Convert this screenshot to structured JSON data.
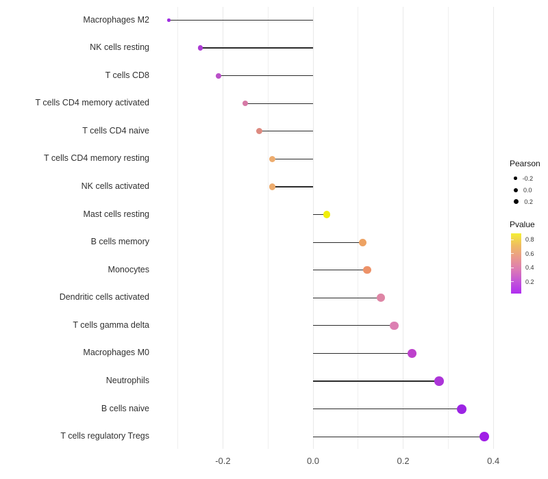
{
  "chart_data": {
    "type": "lollipop",
    "orientation": "horizontal",
    "title": "",
    "xlabel": "",
    "ylabel": "",
    "xlim": [
      -0.355,
      0.415
    ],
    "grid": "minor-vertical-only",
    "x_ticks": [
      {
        "label": "-0.2",
        "value": -0.2
      },
      {
        "label": "0.0",
        "value": 0.0
      },
      {
        "label": "0.2",
        "value": 0.2
      },
      {
        "label": "0.4",
        "value": 0.4
      }
    ],
    "gridline_values": [
      -0.3,
      -0.2,
      -0.1,
      0.0,
      0.1,
      0.2,
      0.3,
      0.4
    ],
    "baseline_value": 0.0,
    "points": [
      {
        "label": "Macrophages M2",
        "pearson": -0.32,
        "pvalue_est": 0.08,
        "color": "#9e2ce0",
        "radius_px": 2.2
      },
      {
        "label": "NK cells resting",
        "pearson": -0.25,
        "pvalue_est": 0.15,
        "color": "#ac3bd4",
        "radius_px": 3.7
      },
      {
        "label": "T cells CD8",
        "pearson": -0.21,
        "pvalue_est": 0.25,
        "color": "#ba50c8",
        "radius_px": 3.9
      },
      {
        "label": "T cells CD4 memory activated",
        "pearson": -0.15,
        "pvalue_est": 0.42,
        "color": "#d679a6",
        "radius_px": 4.2
      },
      {
        "label": "T cells CD4 naive",
        "pearson": -0.12,
        "pvalue_est": 0.5,
        "color": "#dd8a80",
        "radius_px": 4.5
      },
      {
        "label": "T cells CD4 memory resting",
        "pearson": -0.09,
        "pvalue_est": 0.62,
        "color": "#edac6e",
        "radius_px": 4.7
      },
      {
        "label": "NK cells activated",
        "pearson": -0.09,
        "pvalue_est": 0.62,
        "color": "#edac6e",
        "radius_px": 4.7
      },
      {
        "label": "Mast cells resting",
        "pearson": 0.03,
        "pvalue_est": 0.88,
        "color": "#f0ee09",
        "radius_px": 5.2
      },
      {
        "label": "B cells memory",
        "pearson": 0.11,
        "pvalue_est": 0.58,
        "color": "#eda263",
        "radius_px": 5.5
      },
      {
        "label": "Monocytes",
        "pearson": 0.12,
        "pvalue_est": 0.55,
        "color": "#ed9268",
        "radius_px": 5.7
      },
      {
        "label": "Dendritic cells activated",
        "pearson": 0.15,
        "pvalue_est": 0.44,
        "color": "#de85a5",
        "radius_px": 5.9
      },
      {
        "label": "T cells gamma delta",
        "pearson": 0.18,
        "pvalue_est": 0.38,
        "color": "#dc7fb2",
        "radius_px": 6.2
      },
      {
        "label": "Macrophages M0",
        "pearson": 0.22,
        "pvalue_est": 0.22,
        "color": "#bd41cc",
        "radius_px": 6.4
      },
      {
        "label": "Neutrophils",
        "pearson": 0.28,
        "pvalue_est": 0.14,
        "color": "#ac35d8",
        "radius_px": 6.8
      },
      {
        "label": "B cells naive",
        "pearson": 0.33,
        "pvalue_est": 0.07,
        "color": "#9c24e4",
        "radius_px": 7.0
      },
      {
        "label": "T cells regulatory Tregs",
        "pearson": 0.38,
        "pvalue_est": 0.05,
        "color": "#a01ee6",
        "radius_px": 7.3
      }
    ],
    "legend": {
      "size": {
        "title": "Pearson",
        "items": [
          {
            "label": "-0.2",
            "radius_px": 2.3
          },
          {
            "label": "0.0",
            "radius_px": 3.0
          },
          {
            "label": "0.2",
            "radius_px": 3.7
          }
        ]
      },
      "color": {
        "title": "Pvalue",
        "range": [
          0.03,
          0.89
        ],
        "ticks": [
          {
            "label": "0.8",
            "value": 0.8
          },
          {
            "label": "0.6",
            "value": 0.6
          },
          {
            "label": "0.4",
            "value": 0.4
          },
          {
            "label": "0.2",
            "value": 0.2
          }
        ],
        "gradient_stops_bottom_to_top": [
          {
            "at": 0.0,
            "color": "#b02df0"
          },
          {
            "at": 0.2,
            "color": "#c355d8"
          },
          {
            "at": 0.4,
            "color": "#dc7bb4"
          },
          {
            "at": 0.6,
            "color": "#ea9a8c"
          },
          {
            "at": 0.8,
            "color": "#efbc62"
          },
          {
            "at": 1.0,
            "color": "#f4ee35"
          }
        ]
      }
    },
    "colors": {
      "background": "#ffffff",
      "stem": "#2a2a2a",
      "gridline": "#efefef",
      "axis_text": "#4d4d4d",
      "label_text": "#303030"
    }
  }
}
